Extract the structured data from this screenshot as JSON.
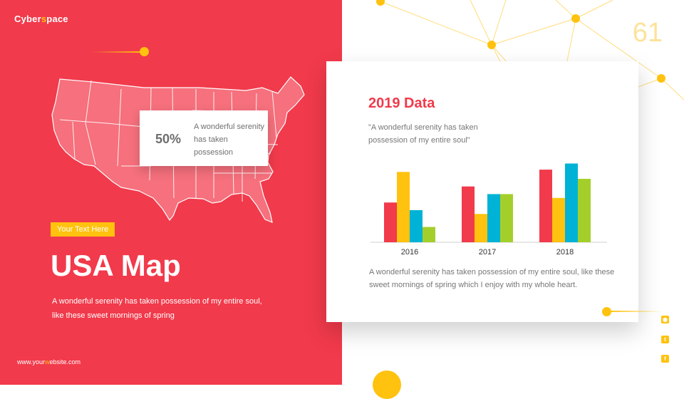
{
  "brand": {
    "prefix": "Cyber",
    "accent": "s",
    "suffix": "pace"
  },
  "page_number": "61",
  "map_callout": {
    "value": "50%",
    "text": "A wonderful serenity has taken possession"
  },
  "left": {
    "tag": "Your Text Here",
    "title": "USA Map",
    "description": "A wonderful serenity has taken possession of my entire soul, like these sweet mornings of spring",
    "website": {
      "prefix": "www.your",
      "accent": "w",
      "suffix": "ebsite.com"
    }
  },
  "card": {
    "title": "2019 Data",
    "quote": "\"A wonderful serenity has taken possession of my entire soul\"",
    "description": "A wonderful serenity has taken possession of my entire soul, like these sweet mornings of spring which I enjoy with my whole heart."
  },
  "colors": {
    "accent_red": "#f13a4b",
    "accent_yellow": "#ffc20e",
    "series_colors": [
      "#f13a4b",
      "#ffc20e",
      "#00b2d6",
      "#a4cf2b"
    ]
  },
  "social_icons": [
    "rss-icon",
    "twitter-icon",
    "facebook-icon"
  ],
  "chart_data": {
    "type": "bar",
    "categories": [
      "2016",
      "2017",
      "2018"
    ],
    "series": [
      {
        "values": [
          52,
          73,
          95
        ]
      },
      {
        "values": [
          92,
          37,
          58
        ]
      },
      {
        "values": [
          42,
          63,
          103
        ]
      },
      {
        "values": [
          20,
          63,
          83
        ]
      }
    ],
    "ylim": [
      0,
      110
    ],
    "grid": false
  }
}
